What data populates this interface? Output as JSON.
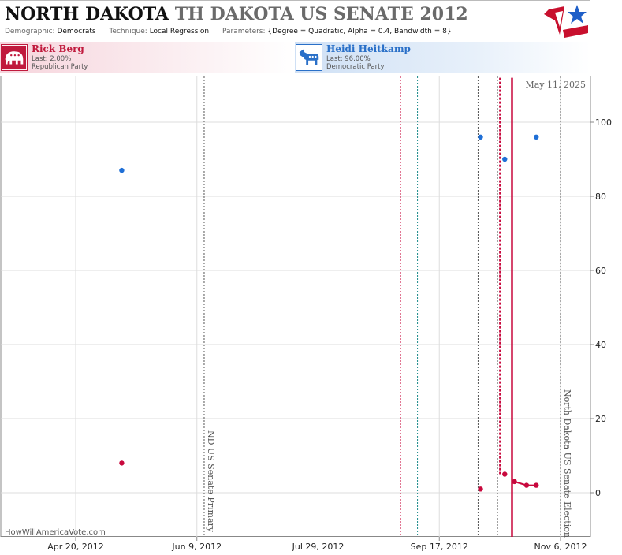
{
  "header": {
    "title_main": "NORTH DAKOTA",
    "title_overlap": "TH DAKOTA US SENATE 2012",
    "demographic_label": "Demographic:",
    "demographic_value": "Democrats",
    "technique_label": "Technique:",
    "technique_value": "Local Regression",
    "parameters_label": "Parameters:",
    "parameters_value": "{Degree = Quadratic, Alpha = 0.4, Bandwidth = 8}"
  },
  "candidates": [
    {
      "name": "Rick Berg",
      "last": "Last: 2.00%",
      "party": "Republican Party",
      "icon": "elephant-icon",
      "color": "#c01a3d"
    },
    {
      "name": "Heidi Heitkamp",
      "last": "Last: 96.00%",
      "party": "Democratic Party",
      "icon": "donkey-icon",
      "color": "#2a70c8"
    }
  ],
  "watermark": "HowWillAmericaVote.com",
  "date_stamp": "May 11, 2025",
  "chart_data": {
    "type": "scatter",
    "title": "",
    "xlabel": "",
    "ylabel": "",
    "x_axis": {
      "type": "date",
      "range": [
        "2012-03-01",
        "2012-11-15"
      ],
      "ticks": [
        "2012-04-20",
        "2012-06-09",
        "2012-07-29",
        "2012-09-17",
        "2012-11-06"
      ],
      "tick_labels": [
        "Apr 20, 2012",
        "Jun 9, 2012",
        "Jul 29, 2012",
        "Sep 17, 2012",
        "Nov 6, 2012"
      ]
    },
    "y_axis": {
      "range": [
        -13,
        112
      ],
      "ticks": [
        0,
        20,
        40,
        60,
        80,
        100
      ],
      "position": "right"
    },
    "grid": true,
    "series": [
      {
        "name": "Heidi Heitkamp",
        "color": "#1f6fd6",
        "points": [
          {
            "x": "2012-05-09",
            "y": 87
          },
          {
            "x": "2012-10-04",
            "y": 96
          },
          {
            "x": "2012-10-14",
            "y": 90
          },
          {
            "x": "2012-10-27",
            "y": 96
          }
        ]
      },
      {
        "name": "Rick Berg",
        "color": "#c8083d",
        "points": [
          {
            "x": "2012-05-09",
            "y": 8
          },
          {
            "x": "2012-10-04",
            "y": 1
          },
          {
            "x": "2012-10-14",
            "y": 5
          },
          {
            "x": "2012-10-18",
            "y": 3
          },
          {
            "x": "2012-10-23",
            "y": 2
          },
          {
            "x": "2012-10-27",
            "y": 2
          }
        ],
        "fit": [
          {
            "x": "2012-10-17",
            "y": -13
          },
          {
            "x": "2012-10-17",
            "y": 112
          }
        ],
        "fit_tail": [
          {
            "x": "2012-10-17",
            "y": 2.5
          },
          {
            "x": "2012-10-18",
            "y": 3
          },
          {
            "x": "2012-10-23",
            "y": 2
          },
          {
            "x": "2012-10-27",
            "y": 2
          }
        ],
        "dashed_fit": [
          {
            "x": "2012-10-12",
            "y": 112
          },
          {
            "x": "2012-10-12",
            "y": 5
          }
        ]
      }
    ],
    "events": [
      {
        "x": "2012-06-12",
        "label": "ND US Senate Primary",
        "color": "#555555",
        "style": "dotted"
      },
      {
        "x": "2012-11-06",
        "label": "North Dakota US Senate Election",
        "color": "#555555",
        "style": "dotted"
      }
    ],
    "plain_lines": [
      {
        "x": "2012-09-01",
        "color": "#c8083d"
      },
      {
        "x": "2012-09-08",
        "color": "#1a8a8a"
      },
      {
        "x": "2012-10-03",
        "color": "#555555"
      },
      {
        "x": "2012-10-11",
        "color": "#555555"
      }
    ]
  }
}
